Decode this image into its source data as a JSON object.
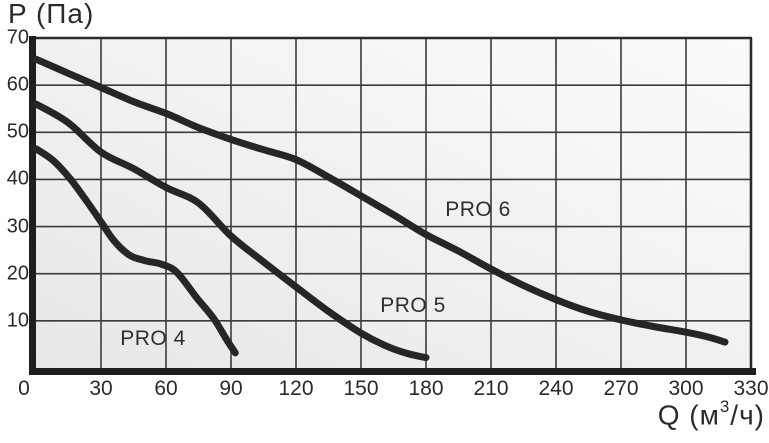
{
  "chart_data": {
    "type": "line",
    "title": "",
    "ylabel": "P (Па)",
    "xlabel": "Q (м3/ч)",
    "xlabel_parts": {
      "pre": "Q (м",
      "sup": "3",
      "post": "/ч)"
    },
    "xlim": [
      0,
      330
    ],
    "ylim": [
      0,
      70
    ],
    "x_ticks": [
      0,
      30,
      60,
      90,
      120,
      150,
      180,
      210,
      240,
      270,
      300,
      330
    ],
    "y_ticks": [
      10,
      20,
      30,
      40,
      50,
      60,
      70
    ],
    "grid": true,
    "legend_position": "inline-labels",
    "series": [
      {
        "name": "PRO 4",
        "points": [
          [
            0,
            46.5
          ],
          [
            8,
            44
          ],
          [
            16,
            40
          ],
          [
            24,
            35
          ],
          [
            30,
            31
          ],
          [
            36,
            27
          ],
          [
            43,
            24
          ],
          [
            50,
            22.8
          ],
          [
            58,
            22
          ],
          [
            65,
            20.3
          ],
          [
            74,
            15
          ],
          [
            82,
            10.5
          ],
          [
            88,
            6
          ],
          [
            92,
            3.2
          ]
        ]
      },
      {
        "name": "PRO 5",
        "points": [
          [
            0,
            56
          ],
          [
            15,
            52
          ],
          [
            30,
            45.8
          ],
          [
            45,
            42.3
          ],
          [
            60,
            38.3
          ],
          [
            75,
            35
          ],
          [
            90,
            28
          ],
          [
            105,
            22.5
          ],
          [
            120,
            17.2
          ],
          [
            135,
            12
          ],
          [
            150,
            7.4
          ],
          [
            162,
            4.6
          ],
          [
            172,
            3
          ],
          [
            180,
            2.2
          ]
        ]
      },
      {
        "name": "PRO 6",
        "points": [
          [
            0,
            65.5
          ],
          [
            15,
            62.5
          ],
          [
            30,
            59.5
          ],
          [
            45,
            56.5
          ],
          [
            60,
            54
          ],
          [
            75,
            51
          ],
          [
            90,
            48.5
          ],
          [
            105,
            46.3
          ],
          [
            120,
            44.2
          ],
          [
            135,
            40.5
          ],
          [
            150,
            36.5
          ],
          [
            165,
            32.5
          ],
          [
            180,
            28.3
          ],
          [
            195,
            24.8
          ],
          [
            210,
            21
          ],
          [
            225,
            17.5
          ],
          [
            240,
            14.5
          ],
          [
            255,
            12
          ],
          [
            270,
            10.2
          ],
          [
            285,
            8.8
          ],
          [
            300,
            7.6
          ],
          [
            310,
            6.6
          ],
          [
            318,
            5.5
          ]
        ]
      }
    ],
    "labels": [
      {
        "text": "PRO 4",
        "q": 54,
        "p": 6.1
      },
      {
        "text": "PRO 5",
        "q": 174,
        "p": 13.2
      },
      {
        "text": "PRO 6",
        "q": 204,
        "p": 33.6
      }
    ]
  },
  "colors": {
    "curve": "#262626",
    "grid": "#3b3b3b",
    "border": "#2a2a2a",
    "axis": "#1e1e1e",
    "plot_bg_dark": "#e7e7e6",
    "plot_bg_light": "#fbfbfb"
  }
}
